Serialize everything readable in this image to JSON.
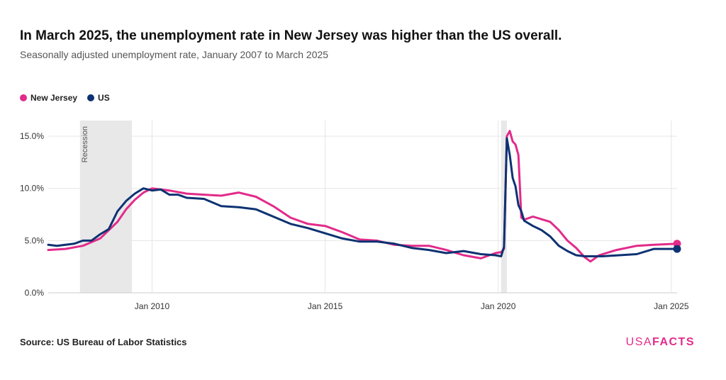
{
  "chart_data": {
    "type": "line",
    "title": "In March 2025, the unemployment rate in New Jersey was higher than the US overall.",
    "subtitle": "Seasonally adjusted unemployment rate, January 2007 to March 2025",
    "x_range": [
      "2007-01",
      "2025-03"
    ],
    "ylim": [
      0,
      16.5
    ],
    "y_ticks": [
      "0.0%",
      "5.0%",
      "10.0%",
      "15.0%"
    ],
    "y_tick_values": [
      0,
      5,
      10,
      15
    ],
    "x_ticks": [
      "Jan 2010",
      "Jan 2015",
      "Jan 2020",
      "Jan 2025"
    ],
    "x_tick_dates": [
      "2010-01",
      "2015-01",
      "2020-01",
      "2025-01"
    ],
    "grid": true,
    "legend_position": "top-left",
    "recessions": [
      {
        "start": "2007-12",
        "end": "2009-06",
        "label": "Recession"
      },
      {
        "start": "2020-02",
        "end": "2020-04",
        "label": ""
      }
    ],
    "series": [
      {
        "name": "New Jersey",
        "color": "#e22b8a",
        "points": [
          [
            "2007-01",
            4.1
          ],
          [
            "2007-07",
            4.2
          ],
          [
            "2008-01",
            4.5
          ],
          [
            "2008-07",
            5.2
          ],
          [
            "2009-01",
            6.8
          ],
          [
            "2009-04",
            8.0
          ],
          [
            "2009-07",
            8.9
          ],
          [
            "2009-10",
            9.6
          ],
          [
            "2010-01",
            10.0
          ],
          [
            "2010-07",
            9.8
          ],
          [
            "2011-01",
            9.5
          ],
          [
            "2011-07",
            9.4
          ],
          [
            "2012-01",
            9.3
          ],
          [
            "2012-07",
            9.6
          ],
          [
            "2013-01",
            9.2
          ],
          [
            "2013-07",
            8.3
          ],
          [
            "2014-01",
            7.2
          ],
          [
            "2014-07",
            6.6
          ],
          [
            "2015-01",
            6.4
          ],
          [
            "2015-07",
            5.8
          ],
          [
            "2016-01",
            5.1
          ],
          [
            "2016-07",
            5.0
          ],
          [
            "2017-01",
            4.6
          ],
          [
            "2017-07",
            4.5
          ],
          [
            "2018-01",
            4.5
          ],
          [
            "2018-07",
            4.1
          ],
          [
            "2019-01",
            3.6
          ],
          [
            "2019-07",
            3.3
          ],
          [
            "2019-12",
            3.8
          ],
          [
            "2020-02",
            3.9
          ],
          [
            "2020-03",
            4.2
          ],
          [
            "2020-04",
            15.0
          ],
          [
            "2020-05",
            15.5
          ],
          [
            "2020-06",
            14.5
          ],
          [
            "2020-07",
            14.2
          ],
          [
            "2020-08",
            13.2
          ],
          [
            "2020-09",
            7.2
          ],
          [
            "2020-10",
            7.0
          ],
          [
            "2021-01",
            7.3
          ],
          [
            "2021-07",
            6.8
          ],
          [
            "2021-10",
            6.0
          ],
          [
            "2022-01",
            5.0
          ],
          [
            "2022-04",
            4.3
          ],
          [
            "2022-07",
            3.4
          ],
          [
            "2022-09",
            3.0
          ],
          [
            "2022-12",
            3.6
          ],
          [
            "2023-06",
            4.1
          ],
          [
            "2024-01",
            4.5
          ],
          [
            "2024-07",
            4.6
          ],
          [
            "2025-03",
            4.7
          ]
        ]
      },
      {
        "name": "US",
        "color": "#0d3272",
        "points": [
          [
            "2007-01",
            4.6
          ],
          [
            "2007-04",
            4.5
          ],
          [
            "2007-07",
            4.6
          ],
          [
            "2007-10",
            4.7
          ],
          [
            "2008-01",
            5.0
          ],
          [
            "2008-04",
            5.0
          ],
          [
            "2008-07",
            5.6
          ],
          [
            "2008-10",
            6.1
          ],
          [
            "2009-01",
            7.8
          ],
          [
            "2009-04",
            8.8
          ],
          [
            "2009-07",
            9.5
          ],
          [
            "2009-10",
            10.0
          ],
          [
            "2010-01",
            9.8
          ],
          [
            "2010-04",
            9.9
          ],
          [
            "2010-07",
            9.4
          ],
          [
            "2010-10",
            9.4
          ],
          [
            "2011-01",
            9.1
          ],
          [
            "2011-07",
            9.0
          ],
          [
            "2012-01",
            8.3
          ],
          [
            "2012-07",
            8.2
          ],
          [
            "2013-01",
            8.0
          ],
          [
            "2013-07",
            7.3
          ],
          [
            "2014-01",
            6.6
          ],
          [
            "2014-07",
            6.2
          ],
          [
            "2015-01",
            5.7
          ],
          [
            "2015-07",
            5.2
          ],
          [
            "2016-01",
            4.9
          ],
          [
            "2016-07",
            4.9
          ],
          [
            "2017-01",
            4.7
          ],
          [
            "2017-07",
            4.3
          ],
          [
            "2018-01",
            4.1
          ],
          [
            "2018-07",
            3.8
          ],
          [
            "2019-01",
            4.0
          ],
          [
            "2019-07",
            3.7
          ],
          [
            "2019-12",
            3.6
          ],
          [
            "2020-02",
            3.5
          ],
          [
            "2020-03",
            4.4
          ],
          [
            "2020-04",
            14.8
          ],
          [
            "2020-05",
            13.2
          ],
          [
            "2020-06",
            11.0
          ],
          [
            "2020-07",
            10.2
          ],
          [
            "2020-08",
            8.4
          ],
          [
            "2020-09",
            7.8
          ],
          [
            "2020-10",
            6.9
          ],
          [
            "2021-01",
            6.4
          ],
          [
            "2021-04",
            6.0
          ],
          [
            "2021-07",
            5.4
          ],
          [
            "2021-10",
            4.5
          ],
          [
            "2022-01",
            4.0
          ],
          [
            "2022-04",
            3.6
          ],
          [
            "2022-07",
            3.5
          ],
          [
            "2023-01",
            3.5
          ],
          [
            "2023-07",
            3.6
          ],
          [
            "2024-01",
            3.7
          ],
          [
            "2024-07",
            4.2
          ],
          [
            "2025-03",
            4.2
          ]
        ]
      }
    ]
  },
  "legend": {
    "items": [
      {
        "label": "New Jersey",
        "color": "#e22b8a"
      },
      {
        "label": "US",
        "color": "#0d3272"
      }
    ]
  },
  "footer": {
    "source_label": "Source:",
    "source_text": "US Bureau of Labor Statistics",
    "logo_usa": "USA",
    "logo_facts": "FACTS"
  }
}
